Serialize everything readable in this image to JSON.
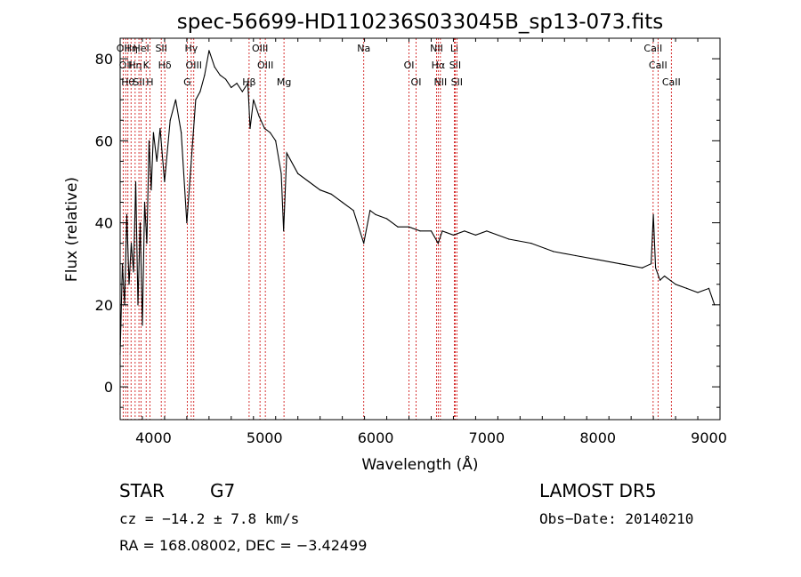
{
  "chart_data": {
    "type": "line",
    "title": "spec-56699-HD110236S033045B_sp13-073.fits",
    "xlabel": "Wavelength (Å)",
    "ylabel": "Flux (relative)",
    "xlim": [
      3700,
      9100
    ],
    "ylim": [
      -8,
      85
    ],
    "xticks": [
      4000,
      5000,
      6000,
      7000,
      8000,
      9000
    ],
    "yticks": [
      0,
      20,
      40,
      60,
      80
    ],
    "grid": false,
    "line_color": "#000000",
    "marker_color": "#cc0000",
    "series": [
      {
        "x": [
          3700,
          3720,
          3740,
          3760,
          3780,
          3800,
          3820,
          3840,
          3860,
          3880,
          3900,
          3920,
          3940,
          3960,
          3980,
          4000,
          4030,
          4060,
          4100,
          4150,
          4200,
          4250,
          4300,
          4340,
          4380,
          4420,
          4460,
          4500,
          4550,
          4600,
          4650,
          4700,
          4750,
          4800,
          4850,
          4870,
          4900,
          4950,
          5000,
          5050,
          5100,
          5150,
          5172,
          5200,
          5300,
          5400,
          5500,
          5600,
          5700,
          5800,
          5893,
          5950,
          6000,
          6100,
          6200,
          6300,
          6400,
          6500,
          6563,
          6600,
          6700,
          6800,
          6900,
          7000,
          7200,
          7400,
          7600,
          7800,
          8000,
          8200,
          8400,
          8480,
          8500,
          8520,
          8560,
          8600,
          8700,
          8800,
          8900,
          9000,
          9050
        ],
        "y": [
          8,
          30,
          20,
          42,
          25,
          35,
          28,
          50,
          20,
          40,
          15,
          45,
          35,
          60,
          48,
          62,
          55,
          63,
          50,
          65,
          70,
          62,
          40,
          55,
          70,
          72,
          76,
          82,
          78,
          76,
          75,
          73,
          74,
          72,
          74,
          63,
          70,
          66,
          63,
          62,
          60,
          52,
          38,
          57,
          52,
          50,
          48,
          47,
          45,
          43,
          35,
          43,
          42,
          41,
          39,
          39,
          38,
          38,
          35,
          38,
          37,
          38,
          37,
          38,
          36,
          35,
          33,
          32,
          31,
          30,
          29,
          30,
          42,
          29,
          26,
          27,
          25,
          24,
          23,
          24,
          20
        ]
      }
    ],
    "emission_lines": [
      {
        "wave": 3727,
        "label": "OII"
      },
      {
        "wave": 3750,
        "label": "OII"
      },
      {
        "wave": 3770,
        "label": "Hθ"
      },
      {
        "wave": 3798,
        "label": "Hη"
      },
      {
        "wave": 3835,
        "label": "Hη"
      },
      {
        "wave": 3869,
        "label": "SII"
      },
      {
        "wave": 3889,
        "label": "HeI"
      },
      {
        "wave": 3934,
        "label": "K"
      },
      {
        "wave": 3968,
        "label": "H"
      },
      {
        "wave": 4070,
        "label": "SII"
      },
      {
        "wave": 4102,
        "label": "Hδ"
      },
      {
        "wave": 4304,
        "label": "G"
      },
      {
        "wave": 4340,
        "label": "Hγ"
      },
      {
        "wave": 4363,
        "label": "OIII"
      },
      {
        "wave": 4861,
        "label": "Hβ"
      },
      {
        "wave": 4959,
        "label": "OIII"
      },
      {
        "wave": 5007,
        "label": "OIII"
      },
      {
        "wave": 5175,
        "label": "Mg"
      },
      {
        "wave": 5893,
        "label": "Na"
      },
      {
        "wave": 6300,
        "label": "OI"
      },
      {
        "wave": 6364,
        "label": "OI"
      },
      {
        "wave": 6548,
        "label": "NII"
      },
      {
        "wave": 6563,
        "label": "Hα"
      },
      {
        "wave": 6583,
        "label": "NII"
      },
      {
        "wave": 6708,
        "label": "Li"
      },
      {
        "wave": 6716,
        "label": "SII"
      },
      {
        "wave": 6731,
        "label": "SII"
      },
      {
        "wave": 8498,
        "label": "CaII"
      },
      {
        "wave": 8542,
        "label": "CaII"
      },
      {
        "wave": 8662,
        "label": "CaII"
      }
    ]
  },
  "info": {
    "object_type": "STAR",
    "subclass": "G7",
    "survey": "LAMOST  DR5",
    "cz": "cz = −14.2 ± 7.8 km/s",
    "obs_date": "Obs−Date: 20140210",
    "coords": "RA = 168.08002, DEC =  −3.42499"
  }
}
